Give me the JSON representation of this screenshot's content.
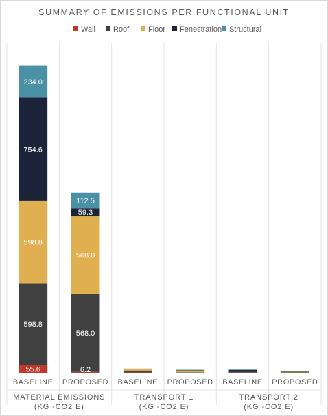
{
  "chart_data": {
    "type": "bar",
    "stacked": true,
    "title": "SUMMARY OF EMISSIONS PER FUNCTIONAL UNIT",
    "legend_position": "top",
    "grid": false,
    "categories": [
      "BASELINE",
      "PROPOSED",
      "BASELINE",
      "PROPOSED",
      "BASELINE",
      "PROPOSED"
    ],
    "groups": [
      {
        "label_line1": "MATERIAL EMISSIONS",
        "label_line2": "(KG -CO2 E)",
        "span": [
          0,
          1
        ]
      },
      {
        "label_line1": "TRANSPORT 1",
        "label_line2": "(KG -CO2 E)",
        "span": [
          2,
          3
        ]
      },
      {
        "label_line1": "TRANSPORT 2",
        "label_line2": "(KG -CO2 E)",
        "span": [
          4,
          5
        ]
      }
    ],
    "ylim": [
      0,
      2340
    ],
    "series": [
      {
        "name": "Wall",
        "color": "#c0392b",
        "values": [
          55.6,
          6.2,
          3,
          0.5,
          2,
          0.5
        ],
        "labels": [
          "55.6",
          "6.2",
          "",
          "",
          "",
          ""
        ]
      },
      {
        "name": "Roof",
        "color": "#404040",
        "values": [
          598.8,
          568.0,
          10,
          3,
          8,
          2
        ],
        "labels": [
          "598.8",
          "568.0",
          "",
          "",
          "",
          ""
        ]
      },
      {
        "name": "Floor",
        "color": "#e0b050",
        "values": [
          598.8,
          568.0,
          12,
          13,
          5,
          4
        ],
        "labels": [
          "598.8",
          "568.0",
          "",
          "",
          "",
          ""
        ]
      },
      {
        "name": "Fenestration",
        "color": "#1b2438",
        "values": [
          754.6,
          59.3,
          4,
          3,
          6,
          3
        ],
        "labels": [
          "754.6",
          "59.3",
          "",
          "",
          "",
          ""
        ]
      },
      {
        "name": "Structural",
        "color": "#4a91a5",
        "values": [
          234.0,
          112.5,
          2,
          3,
          3,
          5
        ],
        "labels": [
          "234.0",
          "112.5",
          "",
          "",
          "",
          ""
        ]
      }
    ]
  }
}
